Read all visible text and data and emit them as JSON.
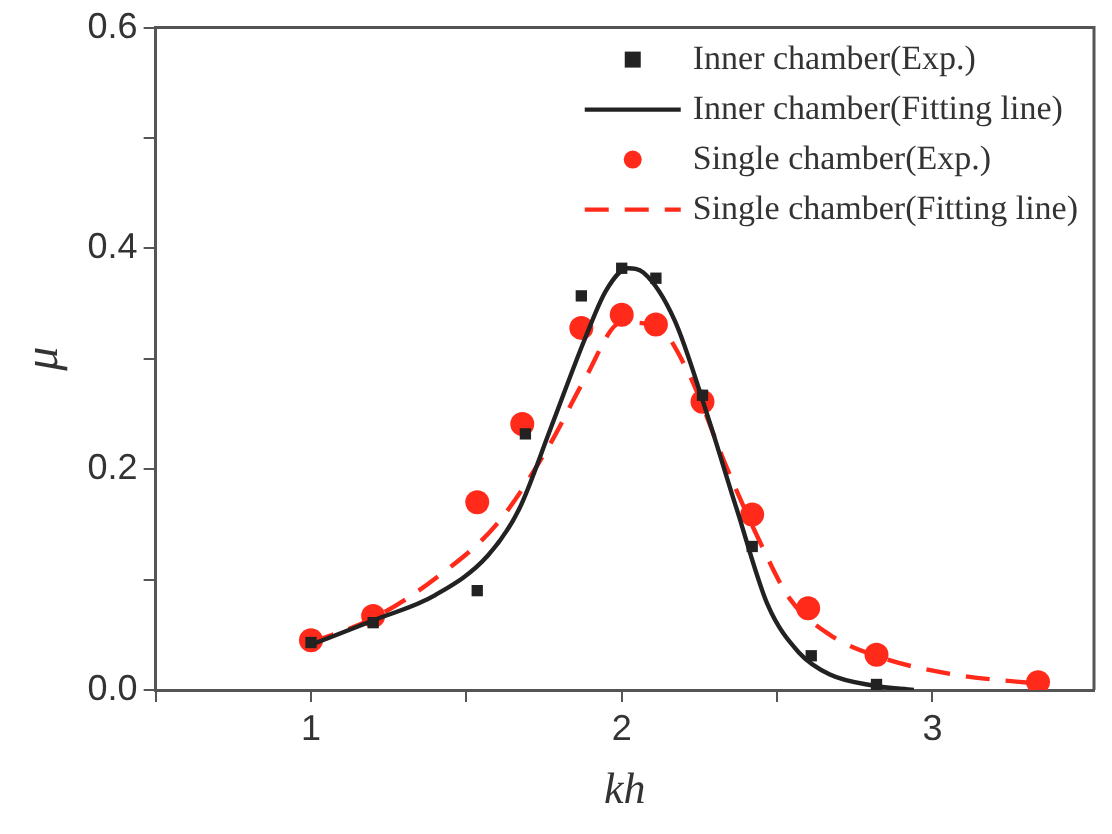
{
  "chart_data": {
    "type": "scatter",
    "xlabel": "kh",
    "ylabel": "μ",
    "xlim": [
      0.5,
      3.52
    ],
    "ylim": [
      0,
      0.6
    ],
    "xticks": [
      {
        "value": 0.5,
        "label": null
      },
      1,
      {
        "value": 1.5,
        "label": null
      },
      2,
      {
        "value": 2.5,
        "label": null
      },
      3
    ],
    "yticks": [
      {
        "value": 0,
        "label": "0.0"
      },
      {
        "value": 0.1,
        "label": null
      },
      0.2,
      {
        "value": 0.3,
        "label": null
      },
      0.4,
      {
        "value": 0.5,
        "label": null
      },
      0.6
    ],
    "legend": "top right",
    "series": [
      {
        "name": "Inner chamber(Exp.)",
        "marker": "square",
        "color": "#222222",
        "x": [
          1.0,
          1.2,
          1.535,
          1.69,
          1.87,
          2.0,
          2.11,
          2.26,
          2.42,
          2.61,
          2.82
        ],
        "values": [
          0.043,
          0.061,
          0.09,
          0.232,
          0.357,
          0.382,
          0.373,
          0.267,
          0.13,
          0.031,
          0.005
        ]
      },
      {
        "name": "Inner chamber(Fitting line)",
        "type": "line",
        "marker": "none",
        "line_style": "solid",
        "color": "#222222",
        "x": [
          1.0,
          1.2,
          1.4,
          1.57,
          1.67,
          1.77,
          1.88,
          1.95,
          2.02,
          2.07,
          2.17,
          2.27,
          2.37,
          2.47,
          2.57,
          2.67,
          2.81,
          2.94
        ],
        "values": [
          0.041,
          0.063,
          0.086,
          0.122,
          0.164,
          0.236,
          0.317,
          0.362,
          0.382,
          0.378,
          0.335,
          0.254,
          0.164,
          0.077,
          0.034,
          0.014,
          0.004,
          0.0
        ]
      },
      {
        "name": "Single chamber(Exp.)",
        "marker": "circle",
        "color": "#ff2a1a",
        "x": [
          1.0,
          1.2,
          1.535,
          1.68,
          1.87,
          2.0,
          2.11,
          2.26,
          2.42,
          2.6,
          2.82,
          3.34
        ],
        "values": [
          0.045,
          0.067,
          0.17,
          0.241,
          0.328,
          0.34,
          0.331,
          0.261,
          0.159,
          0.074,
          0.032,
          0.007
        ]
      },
      {
        "name": "Single chamber(Fitting line)",
        "type": "line",
        "marker": "none",
        "line_style": "dashed",
        "color": "#ff2a1a",
        "x": [
          1.0,
          1.2,
          1.4,
          1.6,
          1.77,
          1.88,
          2.0,
          2.11,
          2.21,
          2.34,
          2.44,
          2.54,
          2.67,
          2.84,
          3.07,
          3.37
        ],
        "values": [
          0.043,
          0.065,
          0.101,
          0.151,
          0.223,
          0.281,
          0.333,
          0.33,
          0.29,
          0.2,
          0.137,
          0.083,
          0.05,
          0.029,
          0.014,
          0.005
        ]
      }
    ]
  }
}
